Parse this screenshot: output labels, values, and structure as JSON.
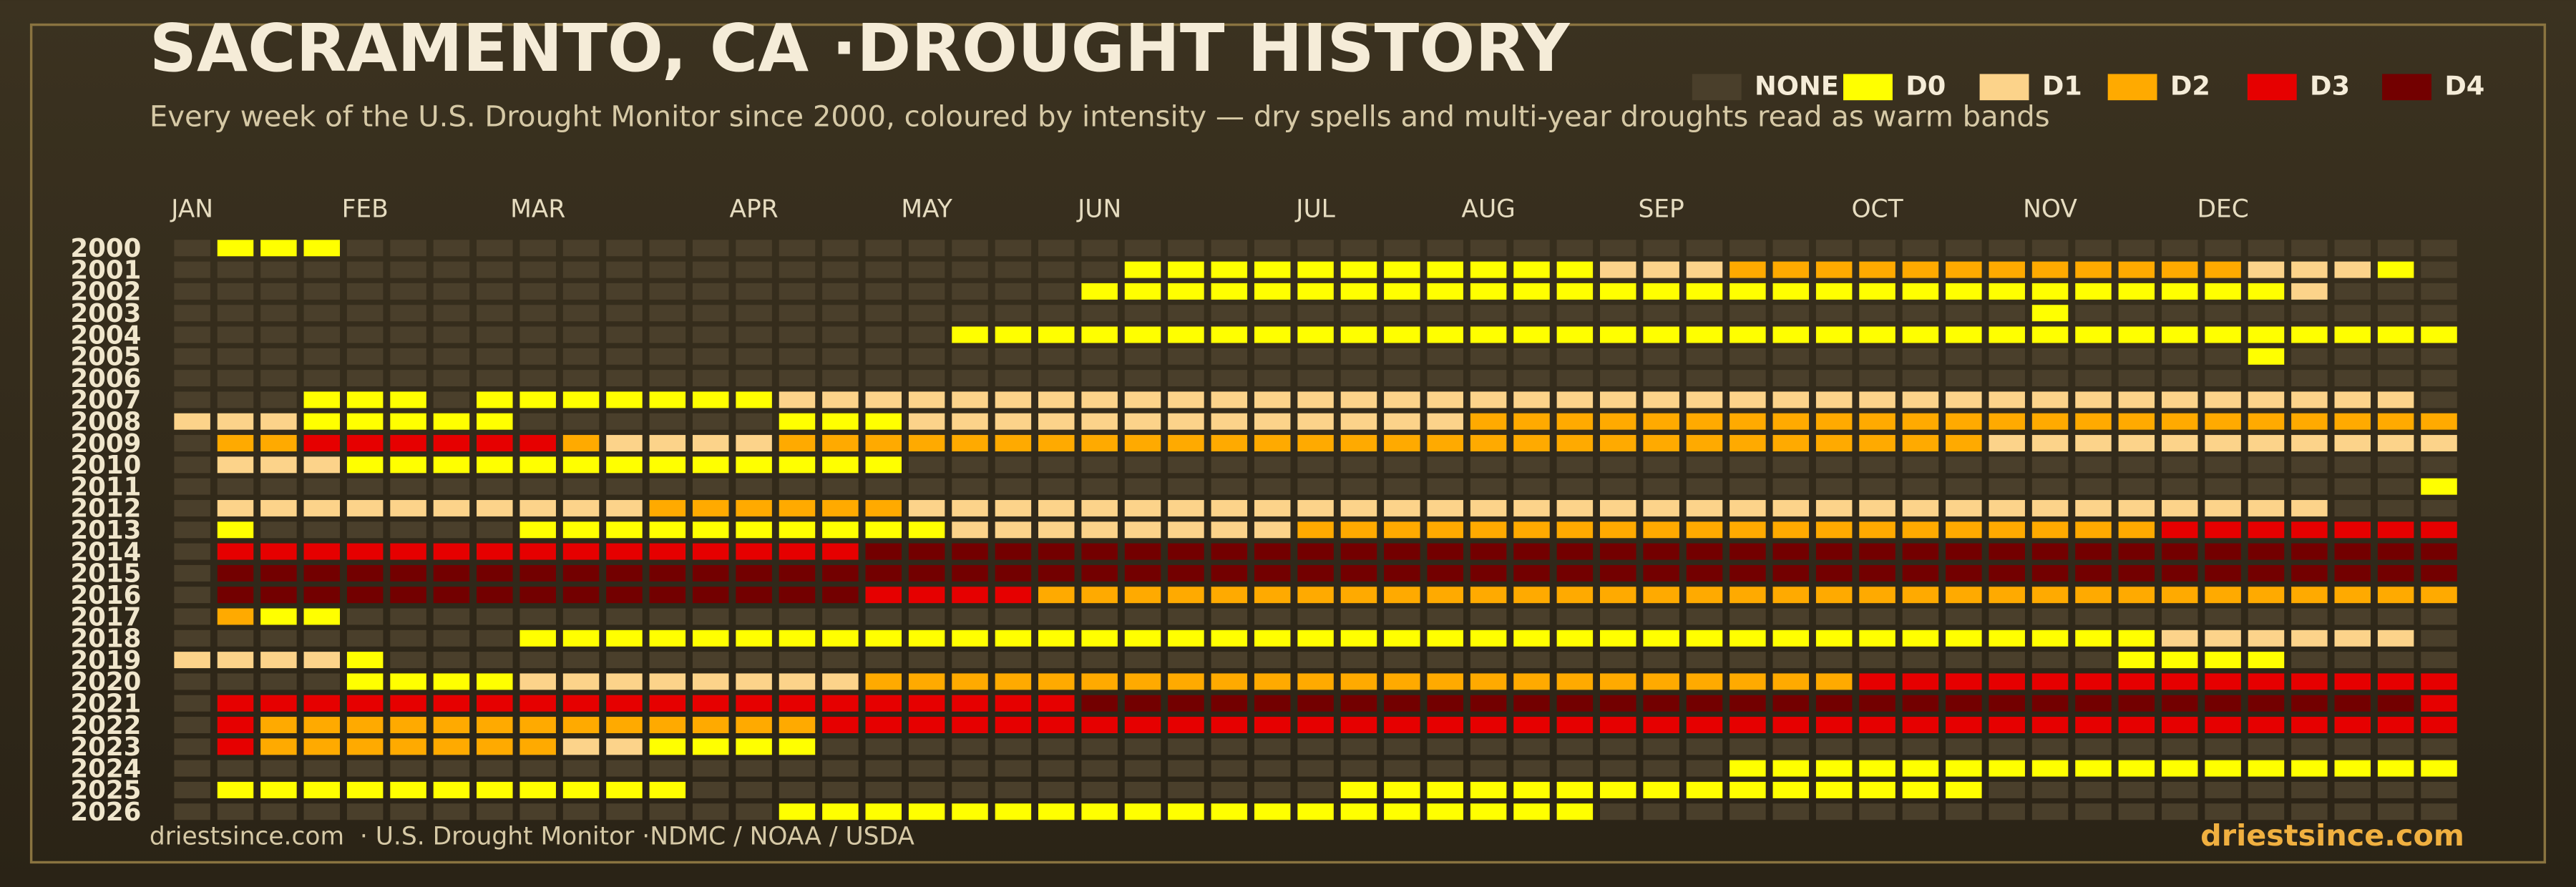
{
  "chart_data": {
    "type": "heatmap",
    "title": "SACRAMENTO, CA ·DROUGHT HISTORY",
    "subtitle": "Every week of the U.S. Drought Monitor since 2000, coloured by intensity — dry spells and multi-year droughts read as warm bands",
    "source": "driestsince.com  · U.S. Drought Monitor ·NDMC / NOAA / USDA",
    "brand": "driestsince.com",
    "legend": [
      {
        "name": "NONE",
        "value": -1,
        "color": "#4a3f2b"
      },
      {
        "name": "D0",
        "value": 0,
        "color": "#ffff00"
      },
      {
        "name": "D1",
        "value": 1,
        "color": "#fcd38a"
      },
      {
        "name": "D2",
        "value": 2,
        "color": "#ffaa00"
      },
      {
        "name": "D3",
        "value": 3,
        "color": "#e60000"
      },
      {
        "name": "D4",
        "value": 4,
        "color": "#730000"
      }
    ],
    "x": [
      "JAN",
      null,
      null,
      null,
      "FEB",
      null,
      null,
      null,
      "MAR",
      null,
      null,
      null,
      null,
      "APR",
      null,
      null,
      null,
      "MAY",
      null,
      null,
      null,
      "JUN",
      null,
      null,
      null,
      null,
      "JUL",
      null,
      null,
      null,
      "AUG",
      null,
      null,
      null,
      "SEP",
      null,
      null,
      null,
      null,
      "OCT",
      null,
      null,
      null,
      "NOV",
      null,
      null,
      null,
      "DEC",
      null,
      null,
      null,
      null,
      null
    ],
    "categories": [
      "2000",
      "2001",
      "2002",
      "2003",
      "2004",
      "2005",
      "2006",
      "2007",
      "2008",
      "2009",
      "2010",
      "2011",
      "2012",
      "2013",
      "2014",
      "2015",
      "2016",
      "2017",
      "2018",
      "2019",
      "2020",
      "2021",
      "2022",
      "2023",
      "2024",
      "2025",
      "2026"
    ],
    "values": [
      [
        -1,
        0,
        0,
        0,
        -1,
        -1,
        -1,
        -1,
        -1,
        -1,
        -1,
        -1,
        -1,
        -1,
        -1,
        -1,
        -1,
        -1,
        -1,
        -1,
        -1,
        -1,
        -1,
        -1,
        -1,
        -1,
        -1,
        -1,
        -1,
        -1,
        -1,
        -1,
        -1,
        -1,
        -1,
        -1,
        -1,
        -1,
        -1,
        -1,
        -1,
        -1,
        -1,
        -1,
        -1,
        -1,
        -1,
        -1,
        -1,
        -1,
        -1,
        -1,
        -1
      ],
      [
        -1,
        -1,
        -1,
        -1,
        -1,
        -1,
        -1,
        -1,
        -1,
        -1,
        -1,
        -1,
        -1,
        -1,
        -1,
        -1,
        -1,
        -1,
        -1,
        -1,
        -1,
        -1,
        0,
        0,
        0,
        0,
        0,
        0,
        0,
        0,
        0,
        0,
        0,
        1,
        1,
        1,
        2,
        2,
        2,
        2,
        2,
        2,
        2,
        2,
        2,
        2,
        2,
        2,
        1,
        1,
        1,
        0,
        -1
      ],
      [
        -1,
        -1,
        -1,
        -1,
        -1,
        -1,
        -1,
        -1,
        -1,
        -1,
        -1,
        -1,
        -1,
        -1,
        -1,
        -1,
        -1,
        -1,
        -1,
        -1,
        -1,
        0,
        0,
        0,
        0,
        0,
        0,
        0,
        0,
        0,
        0,
        0,
        0,
        0,
        0,
        0,
        0,
        0,
        0,
        0,
        0,
        0,
        0,
        0,
        0,
        0,
        0,
        0,
        0,
        1,
        -1,
        -1,
        -1
      ],
      [
        -1,
        -1,
        -1,
        -1,
        -1,
        -1,
        -1,
        -1,
        -1,
        -1,
        -1,
        -1,
        -1,
        -1,
        -1,
        -1,
        -1,
        -1,
        -1,
        -1,
        -1,
        -1,
        -1,
        -1,
        -1,
        -1,
        -1,
        -1,
        -1,
        -1,
        -1,
        -1,
        -1,
        -1,
        -1,
        -1,
        -1,
        -1,
        -1,
        -1,
        -1,
        -1,
        -1,
        0,
        -1,
        -1,
        -1,
        -1,
        -1,
        -1,
        -1,
        -1,
        -1
      ],
      [
        -1,
        -1,
        -1,
        -1,
        -1,
        -1,
        -1,
        -1,
        -1,
        -1,
        -1,
        -1,
        -1,
        -1,
        -1,
        -1,
        -1,
        -1,
        0,
        0,
        0,
        0,
        0,
        0,
        0,
        0,
        0,
        0,
        0,
        0,
        0,
        0,
        0,
        0,
        0,
        0,
        0,
        0,
        0,
        0,
        0,
        0,
        0,
        0,
        0,
        0,
        0,
        0,
        0,
        0,
        0,
        0,
        0
      ],
      [
        -1,
        -1,
        -1,
        -1,
        -1,
        -1,
        -1,
        -1,
        -1,
        -1,
        -1,
        -1,
        -1,
        -1,
        -1,
        -1,
        -1,
        -1,
        -1,
        -1,
        -1,
        -1,
        -1,
        -1,
        -1,
        -1,
        -1,
        -1,
        -1,
        -1,
        -1,
        -1,
        -1,
        -1,
        -1,
        -1,
        -1,
        -1,
        -1,
        -1,
        -1,
        -1,
        -1,
        -1,
        -1,
        -1,
        -1,
        -1,
        0,
        -1,
        -1,
        -1,
        -1
      ],
      [
        -1,
        -1,
        -1,
        -1,
        -1,
        -1,
        -1,
        -1,
        -1,
        -1,
        -1,
        -1,
        -1,
        -1,
        -1,
        -1,
        -1,
        -1,
        -1,
        -1,
        -1,
        -1,
        -1,
        -1,
        -1,
        -1,
        -1,
        -1,
        -1,
        -1,
        -1,
        -1,
        -1,
        -1,
        -1,
        -1,
        -1,
        -1,
        -1,
        -1,
        -1,
        -1,
        -1,
        -1,
        -1,
        -1,
        -1,
        -1,
        -1,
        -1,
        -1,
        -1,
        -1
      ],
      [
        -1,
        -1,
        -1,
        0,
        0,
        0,
        -1,
        0,
        0,
        0,
        0,
        0,
        0,
        0,
        1,
        1,
        1,
        1,
        1,
        1,
        1,
        1,
        1,
        1,
        1,
        1,
        1,
        1,
        1,
        1,
        1,
        1,
        1,
        1,
        1,
        1,
        1,
        1,
        1,
        1,
        1,
        1,
        1,
        1,
        1,
        1,
        1,
        1,
        1,
        1,
        1,
        1,
        -1
      ],
      [
        1,
        1,
        1,
        0,
        0,
        0,
        0,
        0,
        -1,
        -1,
        -1,
        -1,
        -1,
        -1,
        0,
        0,
        0,
        1,
        1,
        1,
        1,
        1,
        1,
        1,
        1,
        1,
        1,
        1,
        1,
        1,
        2,
        2,
        2,
        2,
        2,
        2,
        2,
        2,
        2,
        2,
        2,
        2,
        2,
        2,
        2,
        2,
        2,
        2,
        2,
        2,
        2,
        2,
        2
      ],
      [
        -1,
        2,
        2,
        3,
        3,
        3,
        3,
        3,
        3,
        2,
        1,
        1,
        1,
        1,
        2,
        2,
        2,
        2,
        2,
        2,
        2,
        2,
        2,
        2,
        2,
        2,
        2,
        2,
        2,
        2,
        2,
        2,
        2,
        2,
        2,
        2,
        2,
        2,
        2,
        2,
        2,
        2,
        1,
        1,
        1,
        1,
        1,
        1,
        1,
        1,
        1,
        1,
        1
      ],
      [
        -1,
        1,
        1,
        1,
        0,
        0,
        0,
        0,
        0,
        0,
        0,
        0,
        0,
        0,
        0,
        0,
        0,
        -1,
        -1,
        -1,
        -1,
        -1,
        -1,
        -1,
        -1,
        -1,
        -1,
        -1,
        -1,
        -1,
        -1,
        -1,
        -1,
        -1,
        -1,
        -1,
        -1,
        -1,
        -1,
        -1,
        -1,
        -1,
        -1,
        -1,
        -1,
        -1,
        -1,
        -1,
        -1,
        -1,
        -1,
        -1,
        -1
      ],
      [
        -1,
        -1,
        -1,
        -1,
        -1,
        -1,
        -1,
        -1,
        -1,
        -1,
        -1,
        -1,
        -1,
        -1,
        -1,
        -1,
        -1,
        -1,
        -1,
        -1,
        -1,
        -1,
        -1,
        -1,
        -1,
        -1,
        -1,
        -1,
        -1,
        -1,
        -1,
        -1,
        -1,
        -1,
        -1,
        -1,
        -1,
        -1,
        -1,
        -1,
        -1,
        -1,
        -1,
        -1,
        -1,
        -1,
        -1,
        -1,
        -1,
        -1,
        -1,
        -1,
        0
      ],
      [
        -1,
        1,
        1,
        1,
        1,
        1,
        1,
        1,
        1,
        1,
        1,
        2,
        2,
        2,
        2,
        2,
        2,
        1,
        1,
        1,
        1,
        1,
        1,
        1,
        1,
        1,
        1,
        1,
        1,
        1,
        1,
        1,
        1,
        1,
        1,
        1,
        1,
        1,
        1,
        1,
        1,
        1,
        1,
        1,
        1,
        1,
        1,
        1,
        1,
        1,
        -1,
        -1,
        -1
      ],
      [
        -1,
        0,
        -1,
        -1,
        -1,
        -1,
        -1,
        -1,
        0,
        0,
        0,
        0,
        0,
        0,
        0,
        0,
        0,
        0,
        1,
        1,
        1,
        1,
        1,
        1,
        1,
        1,
        2,
        2,
        2,
        2,
        2,
        2,
        2,
        2,
        2,
        2,
        2,
        2,
        2,
        2,
        2,
        2,
        2,
        2,
        2,
        2,
        3,
        3,
        3,
        3,
        3,
        3,
        3
      ],
      [
        -1,
        3,
        3,
        3,
        3,
        3,
        3,
        3,
        3,
        3,
        3,
        3,
        3,
        3,
        3,
        3,
        4,
        4,
        4,
        4,
        4,
        4,
        4,
        4,
        4,
        4,
        4,
        4,
        4,
        4,
        4,
        4,
        4,
        4,
        4,
        4,
        4,
        4,
        4,
        4,
        4,
        4,
        4,
        4,
        4,
        4,
        4,
        4,
        4,
        4,
        4,
        4,
        4
      ],
      [
        -1,
        4,
        4,
        4,
        4,
        4,
        4,
        4,
        4,
        4,
        4,
        4,
        4,
        4,
        4,
        4,
        4,
        4,
        4,
        4,
        4,
        4,
        4,
        4,
        4,
        4,
        4,
        4,
        4,
        4,
        4,
        4,
        4,
        4,
        4,
        4,
        4,
        4,
        4,
        4,
        4,
        4,
        4,
        4,
        4,
        4,
        4,
        4,
        4,
        4,
        4,
        4,
        4
      ],
      [
        -1,
        4,
        4,
        4,
        4,
        4,
        4,
        4,
        4,
        4,
        4,
        4,
        4,
        4,
        4,
        4,
        3,
        3,
        3,
        3,
        2,
        2,
        2,
        2,
        2,
        2,
        2,
        2,
        2,
        2,
        2,
        2,
        2,
        2,
        2,
        2,
        2,
        2,
        2,
        2,
        2,
        2,
        2,
        2,
        2,
        2,
        2,
        2,
        2,
        2,
        2,
        2,
        2
      ],
      [
        -1,
        2,
        0,
        0,
        -1,
        -1,
        -1,
        -1,
        -1,
        -1,
        -1,
        -1,
        -1,
        -1,
        -1,
        -1,
        -1,
        -1,
        -1,
        -1,
        -1,
        -1,
        -1,
        -1,
        -1,
        -1,
        -1,
        -1,
        -1,
        -1,
        -1,
        -1,
        -1,
        -1,
        -1,
        -1,
        -1,
        -1,
        -1,
        -1,
        -1,
        -1,
        -1,
        -1,
        -1,
        -1,
        -1,
        -1,
        -1,
        -1,
        -1,
        -1,
        -1
      ],
      [
        -1,
        -1,
        -1,
        -1,
        -1,
        -1,
        -1,
        -1,
        0,
        0,
        0,
        0,
        0,
        0,
        0,
        0,
        0,
        0,
        0,
        0,
        0,
        0,
        0,
        0,
        0,
        0,
        0,
        0,
        0,
        0,
        0,
        0,
        0,
        0,
        0,
        0,
        0,
        0,
        0,
        0,
        0,
        0,
        0,
        0,
        0,
        0,
        1,
        1,
        1,
        1,
        1,
        1,
        -1
      ],
      [
        1,
        1,
        1,
        1,
        0,
        -1,
        -1,
        -1,
        -1,
        -1,
        -1,
        -1,
        -1,
        -1,
        -1,
        -1,
        -1,
        -1,
        -1,
        -1,
        -1,
        -1,
        -1,
        -1,
        -1,
        -1,
        -1,
        -1,
        -1,
        -1,
        -1,
        -1,
        -1,
        -1,
        -1,
        -1,
        -1,
        -1,
        -1,
        -1,
        -1,
        -1,
        -1,
        -1,
        -1,
        0,
        0,
        0,
        0,
        -1,
        -1,
        -1,
        -1
      ],
      [
        -1,
        -1,
        -1,
        -1,
        0,
        0,
        0,
        0,
        1,
        1,
        1,
        1,
        1,
        1,
        1,
        1,
        2,
        2,
        2,
        2,
        2,
        2,
        2,
        2,
        2,
        2,
        2,
        2,
        2,
        2,
        2,
        2,
        2,
        2,
        2,
        2,
        2,
        2,
        2,
        3,
        3,
        3,
        3,
        3,
        3,
        3,
        3,
        3,
        3,
        3,
        3,
        3,
        3
      ],
      [
        -1,
        3,
        3,
        3,
        3,
        3,
        3,
        3,
        3,
        3,
        3,
        3,
        3,
        3,
        3,
        3,
        3,
        3,
        3,
        3,
        3,
        4,
        4,
        4,
        4,
        4,
        4,
        4,
        4,
        4,
        4,
        4,
        4,
        4,
        4,
        4,
        4,
        4,
        4,
        4,
        4,
        4,
        4,
        4,
        4,
        4,
        4,
        4,
        4,
        4,
        4,
        4,
        3
      ],
      [
        -1,
        3,
        2,
        2,
        2,
        2,
        2,
        2,
        2,
        2,
        2,
        2,
        2,
        2,
        2,
        3,
        3,
        3,
        3,
        3,
        3,
        3,
        3,
        3,
        3,
        3,
        3,
        3,
        3,
        3,
        3,
        3,
        3,
        3,
        3,
        3,
        3,
        3,
        3,
        3,
        3,
        3,
        3,
        3,
        3,
        3,
        3,
        3,
        3,
        3,
        3,
        3,
        3
      ],
      [
        -1,
        3,
        2,
        2,
        2,
        2,
        2,
        2,
        2,
        1,
        1,
        0,
        0,
        0,
        0,
        -1,
        -1,
        -1,
        -1,
        -1,
        -1,
        -1,
        -1,
        -1,
        -1,
        -1,
        -1,
        -1,
        -1,
        -1,
        -1,
        -1,
        -1,
        -1,
        -1,
        -1,
        -1,
        -1,
        -1,
        -1,
        -1,
        -1,
        -1,
        -1,
        -1,
        -1,
        -1,
        -1,
        -1,
        -1,
        -1,
        -1,
        -1
      ],
      [
        -1,
        -1,
        -1,
        -1,
        -1,
        -1,
        -1,
        -1,
        -1,
        -1,
        -1,
        -1,
        -1,
        -1,
        -1,
        -1,
        -1,
        -1,
        -1,
        -1,
        -1,
        -1,
        -1,
        -1,
        -1,
        -1,
        -1,
        -1,
        -1,
        -1,
        -1,
        -1,
        -1,
        -1,
        -1,
        -1,
        0,
        0,
        0,
        0,
        0,
        0,
        0,
        0,
        0,
        0,
        0,
        0,
        0,
        0,
        0,
        0,
        0
      ],
      [
        -1,
        0,
        0,
        0,
        0,
        0,
        0,
        0,
        0,
        0,
        0,
        0,
        -1,
        -1,
        -1,
        -1,
        -1,
        -1,
        -1,
        -1,
        -1,
        -1,
        -1,
        -1,
        -1,
        -1,
        -1,
        0,
        0,
        0,
        0,
        0,
        0,
        0,
        0,
        0,
        0,
        0,
        0,
        0,
        0,
        0,
        -1,
        -1,
        -1,
        -1,
        -1,
        -1,
        -1,
        -1,
        -1,
        -1,
        -1
      ],
      [
        -1,
        -1,
        -1,
        -1,
        -1,
        -1,
        -1,
        -1,
        -1,
        -1,
        -1,
        -1,
        -1,
        -1,
        0,
        0,
        0,
        0,
        0,
        0,
        0,
        0,
        0,
        0,
        0,
        0,
        0,
        0,
        0,
        0,
        0,
        0,
        0,
        -1,
        -1,
        -1,
        -1,
        -1,
        -1,
        -1,
        -1,
        -1,
        -1,
        -1,
        -1,
        -1,
        -1,
        -1,
        -1,
        -1,
        -1,
        -1,
        -1
      ]
    ]
  }
}
